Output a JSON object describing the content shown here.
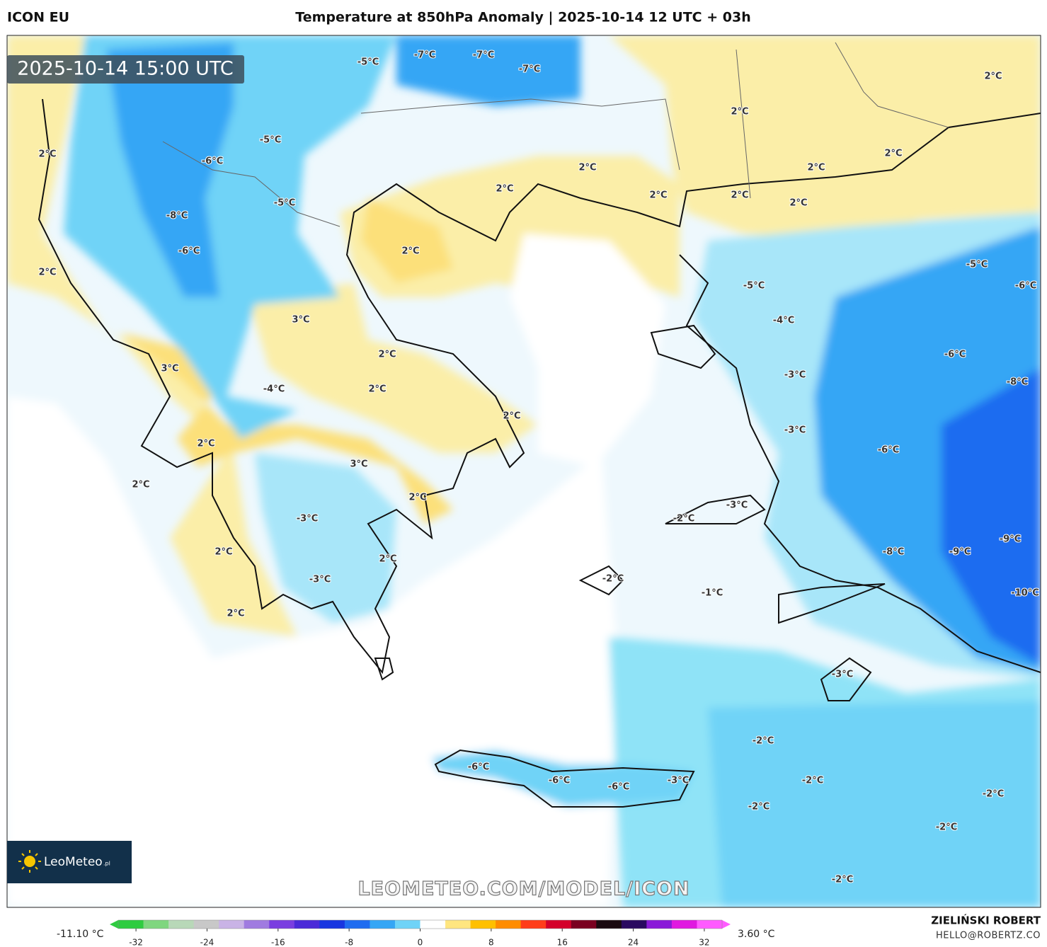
{
  "header": {
    "model": "ICON EU",
    "title": "Temperature at 850hPa Anomaly | 2025-10-14 12 UTC + 03h"
  },
  "valid_time": "2025-10-14 15:00 UTC",
  "map_labels": [
    "-5°C",
    "-7°C",
    "-7°C",
    "-7°C",
    "2°C",
    "2°C",
    "-5°C",
    "2°C",
    "-6°C",
    "2°C",
    "2°C",
    "2°C",
    "2°C",
    "2°C",
    "2°C",
    "2°C",
    "-5°C",
    "-8°C",
    "-6°C",
    "2°C",
    "2°C",
    "-5°C",
    "-6°C",
    "-5°C",
    "3°C",
    "-4°C",
    "2°C",
    "-6°C",
    "3°C",
    "-3°C",
    "-8°C",
    "-4°C",
    "2°C",
    "2°C",
    "-3°C",
    "2°C",
    "-6°C",
    "3°C",
    "2°C",
    "2°C",
    "-3°C",
    "-2°C",
    "-3°C",
    "-9°C",
    "-8°C",
    "-9°C",
    "2°C",
    "2°C",
    "-3°C",
    "-2°C",
    "-1°C",
    "-10°C",
    "2°C",
    "-3°C",
    "-2°C",
    "-6°C",
    "-6°C",
    "-6°C",
    "-3°C",
    "-2°C",
    "-2°C",
    "-2°C",
    "-2°C",
    "-2°C"
  ],
  "watermark": "LEOMETEO.COM/MODEL/ICON",
  "logo": {
    "name": "LeoMeteo",
    "suffix": ".pl"
  },
  "colorbar": {
    "min_label": "-11.10 °C",
    "max_label": "3.60 °C",
    "lim": [
      -34,
      34
    ],
    "ticks": [
      -32,
      -24,
      -16,
      -8,
      0,
      8,
      16,
      24,
      32
    ],
    "colors": [
      "#2ecc40",
      "#7fd67f",
      "#b8d8b8",
      "#c8c8c8",
      "#c9b3e6",
      "#a07be0",
      "#7a3ee0",
      "#4b2ad8",
      "#1836e0",
      "#1f6cf0",
      "#35a6f5",
      "#6fd3f7",
      "#ffffff",
      "#ffe680",
      "#ffc000",
      "#ff8c00",
      "#ff3d1a",
      "#d4002a",
      "#7a0020",
      "#1a0a10",
      "#2a0a60",
      "#8a1ad8",
      "#e01ae0",
      "#ff5aff"
    ]
  },
  "author": {
    "name": "ZIELIŃSKI ROBERT",
    "email": "HELLO@ROBERTZ.CO"
  }
}
